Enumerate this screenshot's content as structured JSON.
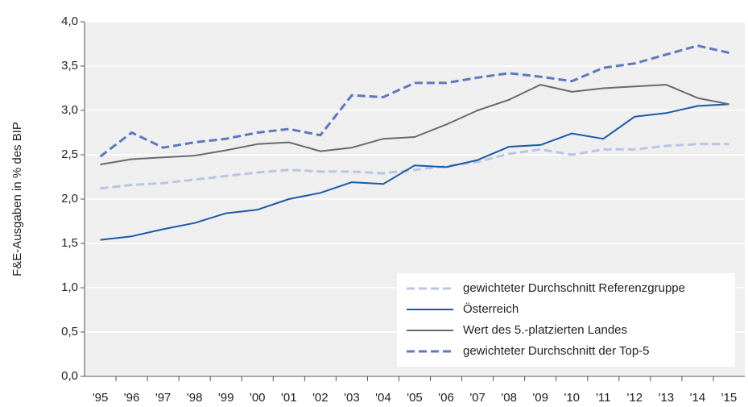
{
  "chart_data": {
    "type": "line",
    "y_label": "F&E-Ausgaben in % des BIP",
    "categories": [
      "'95",
      "'96",
      "'97",
      "'98",
      "'99",
      "'00",
      "'01",
      "'02",
      "'03",
      "'04",
      "'05",
      "'06",
      "'07",
      "'08",
      "'09",
      "'10",
      "'11",
      "'12",
      "'13",
      "'14",
      "'15"
    ],
    "series": [
      {
        "name": "gewichteter Durchschnitt Referenzgruppe",
        "color": "#b9c5e6",
        "dashed": true,
        "width": 3,
        "values": [
          2.12,
          2.16,
          2.18,
          2.22,
          2.26,
          2.3,
          2.33,
          2.31,
          2.31,
          2.29,
          2.33,
          2.37,
          2.42,
          2.51,
          2.56,
          2.5,
          2.56,
          2.56,
          2.6,
          2.62,
          2.62
        ]
      },
      {
        "name": "Österreich",
        "color": "#1a5aa8",
        "dashed": false,
        "width": 2,
        "values": [
          1.54,
          1.58,
          1.66,
          1.73,
          1.84,
          1.88,
          2.0,
          2.07,
          2.19,
          2.17,
          2.38,
          2.36,
          2.44,
          2.59,
          2.61,
          2.74,
          2.68,
          2.93,
          2.97,
          3.05,
          3.07
        ]
      },
      {
        "name": "Wert des 5.-platzierten Landes",
        "color": "#6a6a6a",
        "dashed": false,
        "width": 2,
        "values": [
          2.39,
          2.45,
          2.47,
          2.49,
          2.55,
          2.62,
          2.64,
          2.54,
          2.58,
          2.68,
          2.7,
          2.84,
          3.0,
          3.12,
          3.29,
          3.21,
          3.25,
          3.27,
          3.29,
          3.14,
          3.07
        ]
      },
      {
        "name": "gewichteter Durchschnitt der Top-5",
        "color": "#5b79bf",
        "dashed": true,
        "width": 3,
        "values": [
          2.48,
          2.75,
          2.58,
          2.64,
          2.68,
          2.75,
          2.79,
          2.72,
          3.17,
          3.15,
          3.31,
          3.31,
          3.37,
          3.42,
          3.38,
          3.33,
          3.48,
          3.53,
          3.63,
          3.73,
          3.65
        ]
      }
    ],
    "ylim": [
      0,
      4
    ],
    "yticks": [
      {
        "value": 0,
        "label": "0,0"
      },
      {
        "value": 0.5,
        "label": "0,5"
      },
      {
        "value": 1,
        "label": "1,0"
      },
      {
        "value": 1.5,
        "label": "1,5"
      },
      {
        "value": 2,
        "label": "2,0"
      },
      {
        "value": 2.5,
        "label": "2,5"
      },
      {
        "value": 3,
        "label": "3,0"
      },
      {
        "value": 3.5,
        "label": "3,5"
      },
      {
        "value": 4,
        "label": "4,0"
      }
    ],
    "grid": true,
    "legend": "lower right"
  }
}
